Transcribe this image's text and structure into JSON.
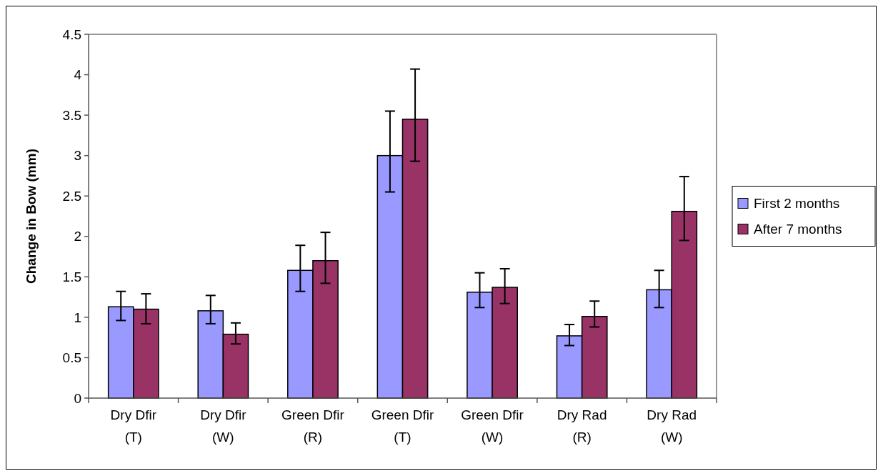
{
  "chart_data": {
    "type": "bar",
    "ylabel": "Change in Bow (mm)",
    "categories": [
      "Dry Dfir\n(T)",
      "Dry Dfir\n(W)",
      "Green Dfir\n(R)",
      "Green Dfir\n(T)",
      "Green Dfir\n(W)",
      "Dry Rad\n(R)",
      "Dry Rad\n(W)"
    ],
    "series": [
      {
        "name": "First 2 months",
        "color": "#9999ff",
        "values": [
          1.13,
          1.08,
          1.58,
          3.0,
          1.31,
          0.77,
          1.34
        ],
        "errors": [
          [
            0.96,
            1.32
          ],
          [
            0.92,
            1.27
          ],
          [
            1.32,
            1.89
          ],
          [
            2.55,
            3.55
          ],
          [
            1.12,
            1.55
          ],
          [
            0.65,
            0.91
          ],
          [
            1.12,
            1.58
          ]
        ]
      },
      {
        "name": "After 7 months",
        "color": "#993366",
        "values": [
          1.1,
          0.79,
          1.7,
          3.45,
          1.37,
          1.01,
          2.31
        ],
        "errors": [
          [
            0.92,
            1.29
          ],
          [
            0.67,
            0.93
          ],
          [
            1.42,
            2.05
          ],
          [
            2.93,
            4.07
          ],
          [
            1.17,
            1.6
          ],
          [
            0.88,
            1.2
          ],
          [
            1.95,
            2.74
          ]
        ]
      }
    ],
    "ylim": [
      0,
      4.5
    ],
    "yticks": [
      0,
      0.5,
      1,
      1.5,
      2,
      2.5,
      3,
      3.5,
      4,
      4.5
    ],
    "legend": "right"
  }
}
